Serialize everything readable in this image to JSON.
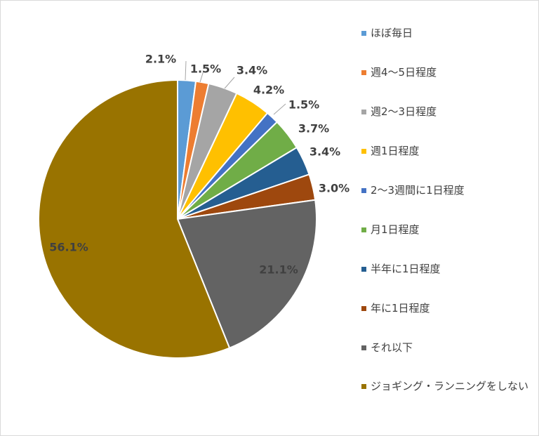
{
  "chart_data": {
    "type": "pie",
    "categories": [
      "ほぼ毎日",
      "週4～5日程度",
      "週2～3日程度",
      "週1日程度",
      "2～3週間に1日程度",
      "月1日程度",
      "半年に1日程度",
      "年に1日程度",
      "それ以下",
      "ジョギング・ランニングをしない"
    ],
    "values": [
      2.1,
      1.5,
      3.4,
      4.2,
      1.5,
      3.7,
      3.4,
      3.0,
      21.1,
      56.1
    ],
    "value_labels": [
      "2.1%",
      "1.5%",
      "3.4%",
      "4.2%",
      "1.5%",
      "3.7%",
      "3.4%",
      "3.0%",
      "21.1%",
      "56.1%"
    ],
    "colors": [
      "#5B9BD5",
      "#ED7D31",
      "#A5A5A5",
      "#FFC000",
      "#4472C4",
      "#70AD47",
      "#255E91",
      "#9E480E",
      "#636363",
      "#997300"
    ],
    "legend_position": "right"
  }
}
